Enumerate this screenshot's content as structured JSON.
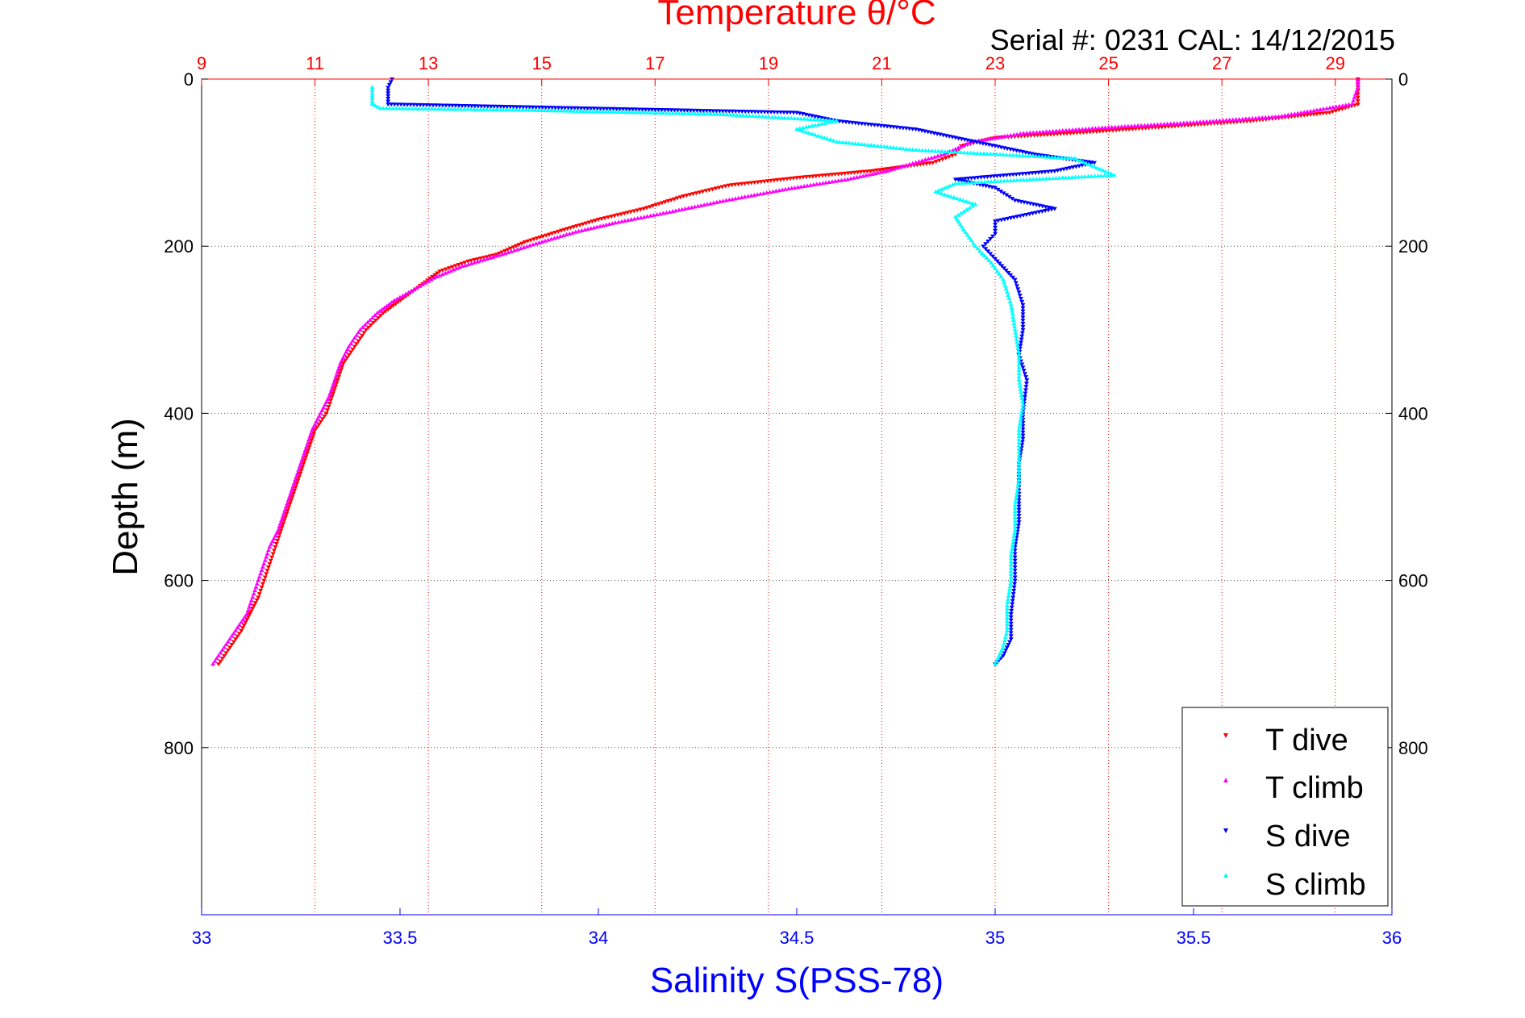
{
  "chart_data": {
    "type": "scatter",
    "top_title": "Temperature θ/°C",
    "subtitle": "Serial #: 0231  CAL: 14/12/2015",
    "xlabel_bottom": "Salinity S(PSS-78)",
    "ylabel": "Depth (m)",
    "y_axis": {
      "range": [
        0,
        1000
      ],
      "reversed": true,
      "ticks": [
        0,
        200,
        400,
        600,
        800
      ]
    },
    "x_top_axis": {
      "quantity": "Temperature",
      "range": [
        9,
        30
      ],
      "ticks": [
        9,
        11,
        13,
        15,
        17,
        19,
        21,
        23,
        25,
        27,
        29
      ]
    },
    "x_bottom_axis": {
      "quantity": "Salinity",
      "range": [
        33,
        36
      ],
      "ticks": [
        33,
        33.5,
        34,
        34.5,
        35,
        35.5,
        36
      ]
    },
    "grid": true,
    "legend_position": "bottom-right",
    "series": [
      {
        "name": "T dive",
        "axis": "top",
        "color": "#ff0000",
        "marker": "down-triangle",
        "points": [
          [
            29.4,
            0
          ],
          [
            29.4,
            10
          ],
          [
            29.4,
            30
          ],
          [
            28.9,
            40
          ],
          [
            27.5,
            50
          ],
          [
            26.0,
            57
          ],
          [
            24.5,
            64
          ],
          [
            23.0,
            70
          ],
          [
            22.4,
            80
          ],
          [
            22.3,
            90
          ],
          [
            21.9,
            100
          ],
          [
            20.8,
            110
          ],
          [
            19.5,
            118
          ],
          [
            18.3,
            127
          ],
          [
            17.5,
            140
          ],
          [
            16.8,
            155
          ],
          [
            16.0,
            168
          ],
          [
            15.4,
            180
          ],
          [
            14.7,
            195
          ],
          [
            14.2,
            210
          ],
          [
            13.7,
            218
          ],
          [
            13.2,
            230
          ],
          [
            12.9,
            245
          ],
          [
            12.6,
            260
          ],
          [
            12.2,
            280
          ],
          [
            11.9,
            300
          ],
          [
            11.7,
            320
          ],
          [
            11.5,
            340
          ],
          [
            11.4,
            360
          ],
          [
            11.3,
            380
          ],
          [
            11.2,
            400
          ],
          [
            11.0,
            420
          ],
          [
            10.9,
            440
          ],
          [
            10.8,
            460
          ],
          [
            10.7,
            480
          ],
          [
            10.6,
            500
          ],
          [
            10.5,
            520
          ],
          [
            10.4,
            540
          ],
          [
            10.3,
            560
          ],
          [
            10.2,
            580
          ],
          [
            10.1,
            600
          ],
          [
            10.0,
            620
          ],
          [
            9.85,
            640
          ],
          [
            9.7,
            660
          ],
          [
            9.5,
            680
          ],
          [
            9.3,
            700
          ]
        ]
      },
      {
        "name": "T climb",
        "axis": "top",
        "color": "#ff00ff",
        "marker": "up-triangle",
        "points": [
          [
            9.2,
            700
          ],
          [
            9.4,
            680
          ],
          [
            9.6,
            660
          ],
          [
            9.8,
            640
          ],
          [
            9.9,
            620
          ],
          [
            10.0,
            600
          ],
          [
            10.1,
            580
          ],
          [
            10.2,
            560
          ],
          [
            10.35,
            540
          ],
          [
            10.45,
            520
          ],
          [
            10.55,
            500
          ],
          [
            10.65,
            480
          ],
          [
            10.75,
            460
          ],
          [
            10.85,
            440
          ],
          [
            10.95,
            420
          ],
          [
            11.1,
            400
          ],
          [
            11.25,
            380
          ],
          [
            11.35,
            360
          ],
          [
            11.45,
            340
          ],
          [
            11.6,
            320
          ],
          [
            11.8,
            300
          ],
          [
            12.1,
            280
          ],
          [
            12.4,
            265
          ],
          [
            12.8,
            250
          ],
          [
            13.1,
            238
          ],
          [
            13.6,
            224
          ],
          [
            14.3,
            210
          ],
          [
            14.9,
            197
          ],
          [
            15.6,
            183
          ],
          [
            16.3,
            172
          ],
          [
            17.2,
            160
          ],
          [
            18.2,
            146
          ],
          [
            19.3,
            132
          ],
          [
            20.4,
            120
          ],
          [
            21.1,
            110
          ],
          [
            21.6,
            100
          ],
          [
            22.1,
            90
          ],
          [
            22.6,
            75
          ],
          [
            23.5,
            65
          ],
          [
            25.0,
            58
          ],
          [
            26.5,
            52
          ],
          [
            28.0,
            45
          ],
          [
            29.3,
            30
          ],
          [
            29.4,
            10
          ],
          [
            29.4,
            0
          ]
        ]
      },
      {
        "name": "S dive",
        "axis": "bottom",
        "color": "#0000ff",
        "marker": "down-triangle",
        "points": [
          [
            33.48,
            0
          ],
          [
            33.47,
            10
          ],
          [
            33.47,
            20
          ],
          [
            33.47,
            30
          ],
          [
            34.5,
            40
          ],
          [
            34.6,
            50
          ],
          [
            34.8,
            60
          ],
          [
            34.9,
            70
          ],
          [
            35.0,
            80
          ],
          [
            35.1,
            90
          ],
          [
            35.25,
            100
          ],
          [
            35.15,
            110
          ],
          [
            34.9,
            120
          ],
          [
            35.0,
            130
          ],
          [
            35.05,
            145
          ],
          [
            35.15,
            155
          ],
          [
            35.0,
            170
          ],
          [
            35.0,
            185
          ],
          [
            34.97,
            200
          ],
          [
            35.0,
            215
          ],
          [
            35.05,
            240
          ],
          [
            35.07,
            270
          ],
          [
            35.07,
            300
          ],
          [
            35.06,
            330
          ],
          [
            35.08,
            360
          ],
          [
            35.07,
            400
          ],
          [
            35.07,
            430
          ],
          [
            35.06,
            460
          ],
          [
            35.06,
            500
          ],
          [
            35.06,
            530
          ],
          [
            35.05,
            560
          ],
          [
            35.05,
            600
          ],
          [
            35.04,
            640
          ],
          [
            35.04,
            670
          ],
          [
            35.02,
            690
          ],
          [
            35.0,
            700
          ]
        ]
      },
      {
        "name": "S climb",
        "axis": "bottom",
        "color": "#00ffff",
        "marker": "up-triangle",
        "points": [
          [
            35.0,
            700
          ],
          [
            35.02,
            680
          ],
          [
            35.03,
            660
          ],
          [
            35.03,
            630
          ],
          [
            35.04,
            600
          ],
          [
            35.04,
            570
          ],
          [
            35.05,
            540
          ],
          [
            35.05,
            510
          ],
          [
            35.06,
            480
          ],
          [
            35.06,
            450
          ],
          [
            35.06,
            420
          ],
          [
            35.07,
            390
          ],
          [
            35.06,
            360
          ],
          [
            35.06,
            330
          ],
          [
            35.05,
            300
          ],
          [
            35.04,
            270
          ],
          [
            35.02,
            240
          ],
          [
            34.99,
            220
          ],
          [
            34.95,
            200
          ],
          [
            34.92,
            180
          ],
          [
            34.9,
            165
          ],
          [
            34.95,
            150
          ],
          [
            34.85,
            135
          ],
          [
            34.9,
            125
          ],
          [
            35.3,
            115
          ],
          [
            35.25,
            105
          ],
          [
            35.2,
            95
          ],
          [
            34.8,
            85
          ],
          [
            34.6,
            75
          ],
          [
            34.5,
            60
          ],
          [
            34.6,
            50
          ],
          [
            34.3,
            42
          ],
          [
            33.8,
            37
          ],
          [
            33.45,
            35
          ],
          [
            33.43,
            30
          ],
          [
            33.43,
            20
          ],
          [
            33.43,
            10
          ]
        ]
      }
    ]
  }
}
